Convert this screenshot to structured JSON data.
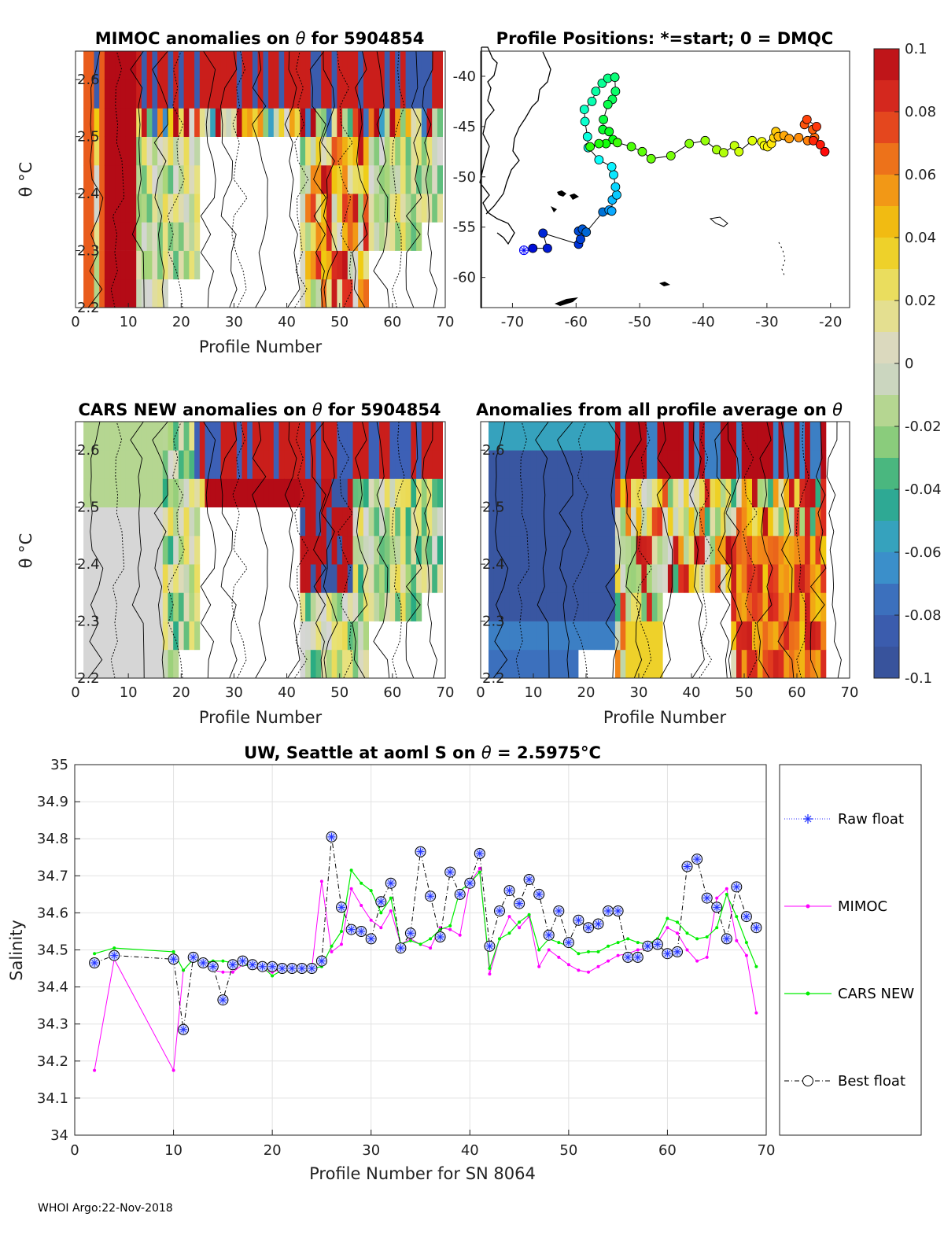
{
  "footer": "WHOI Argo:22-Nov-2018",
  "colorbar": {
    "ticks": [
      "0.1",
      "0.08",
      "0.06",
      "0.04",
      "0.02",
      "0",
      "-0.02",
      "-0.04",
      "-0.06",
      "-0.08",
      "-0.1"
    ],
    "range": [
      -0.1,
      0.1
    ]
  },
  "chart_data": [
    {
      "id": "mimoc",
      "type": "heatmap",
      "title_prefix": "MIMOC anomalies on ",
      "title_symbol": "θ",
      "title_suffix": "  for 5904854",
      "xlabel": "Profile Number",
      "ylabel": "θ °C",
      "xlim": [
        0,
        70
      ],
      "ylim": [
        2.2,
        2.65
      ],
      "xticks": [
        "0",
        "10",
        "20",
        "30",
        "40",
        "50",
        "60",
        "70"
      ],
      "yticks": [
        "2.6",
        "2.5",
        "2.4",
        "2.3",
        "2.2"
      ]
    },
    {
      "id": "map",
      "type": "scatter",
      "title": "Profile Positions: *=start; 0 = DMQC",
      "xlim": [
        -75,
        -17
      ],
      "ylim": [
        -63,
        -37.5
      ],
      "xticks": [
        "-70",
        "-60",
        "-50",
        "-40",
        "-30",
        "-20"
      ],
      "yticks": [
        "-40",
        "-45",
        "-50",
        "-55",
        "-60"
      ],
      "track": [
        [
          -68.2,
          -57.3
        ],
        [
          -66.8,
          -57.1
        ],
        [
          -64.5,
          -57.1
        ],
        [
          -65.2,
          -55.6
        ],
        [
          -59.6,
          -56.7
        ],
        [
          -59.3,
          -56.2
        ],
        [
          -59.6,
          -55.4
        ],
        [
          -59.0,
          -55.2
        ],
        [
          -58.4,
          -55.5
        ],
        [
          -55.8,
          -53.5
        ],
        [
          -54.8,
          -53.3
        ],
        [
          -54.4,
          -53.4
        ],
        [
          -54.3,
          -52.3
        ],
        [
          -53.6,
          -51.8
        ],
        [
          -53.8,
          -51.0
        ],
        [
          -54.1,
          -49.8
        ],
        [
          -54.4,
          -49.0
        ],
        [
          -56.4,
          -48.3
        ],
        [
          -58.1,
          -47.1
        ],
        [
          -58.2,
          -46.0
        ],
        [
          -58.6,
          -44.5
        ],
        [
          -58.7,
          -43.3
        ],
        [
          -57.5,
          -42.5
        ],
        [
          -56.9,
          -41.5
        ],
        [
          -55.9,
          -40.7
        ],
        [
          -55.0,
          -40.2
        ],
        [
          -53.9,
          -40.1
        ],
        [
          -53.8,
          -41.5
        ],
        [
          -54.3,
          -42.3
        ],
        [
          -55.0,
          -42.8
        ],
        [
          -55.7,
          -44.3
        ],
        [
          -55.8,
          -45.3
        ],
        [
          -54.8,
          -45.5
        ],
        [
          -54.2,
          -46.3
        ],
        [
          -55.3,
          -46.7
        ],
        [
          -56.4,
          -46.7
        ],
        [
          -57.8,
          -47.0
        ],
        [
          -53.5,
          -46.6
        ],
        [
          -51.3,
          -47.0
        ],
        [
          -49.6,
          -47.5
        ],
        [
          -48.2,
          -48.2
        ],
        [
          -45.1,
          -47.9
        ],
        [
          -42.2,
          -46.7
        ],
        [
          -39.7,
          -46.4
        ],
        [
          -37.9,
          -47.3
        ],
        [
          -36.8,
          -47.6
        ],
        [
          -35.1,
          -46.9
        ],
        [
          -34.4,
          -47.5
        ],
        [
          -32.3,
          -46.4
        ],
        [
          -30.8,
          -46.5
        ],
        [
          -30.4,
          -46.9
        ],
        [
          -29.9,
          -47.0
        ],
        [
          -29.3,
          -46.7
        ],
        [
          -28.9,
          -46.1
        ],
        [
          -28.6,
          -45.5
        ],
        [
          -28.2,
          -46.0
        ],
        [
          -27.3,
          -45.9
        ],
        [
          -26.5,
          -46.2
        ],
        [
          -25.0,
          -46.1
        ],
        [
          -23.6,
          -46.4
        ],
        [
          -22.5,
          -46.1
        ],
        [
          -22.8,
          -45.3
        ],
        [
          -24.1,
          -44.8
        ],
        [
          -23.7,
          -44.3
        ],
        [
          -22.2,
          -45.0
        ],
        [
          -22.7,
          -46.4
        ],
        [
          -21.6,
          -46.8
        ],
        [
          -20.9,
          -47.5
        ]
      ]
    },
    {
      "id": "cars",
      "type": "heatmap",
      "title_prefix": "CARS NEW anomalies on ",
      "title_symbol": "θ",
      "title_suffix": " for 5904854",
      "xlabel": "Profile Number",
      "ylabel": "θ °C",
      "xlim": [
        0,
        70
      ],
      "ylim": [
        2.2,
        2.65
      ],
      "xticks": [
        "0",
        "10",
        "20",
        "30",
        "40",
        "50",
        "60",
        "70"
      ],
      "yticks": [
        "2.6",
        "2.5",
        "2.4",
        "2.3",
        "2.2"
      ]
    },
    {
      "id": "avg",
      "type": "heatmap",
      "title_prefix": "Anomalies from all profile average on ",
      "title_symbol": "θ",
      "title_suffix": "",
      "xlabel": "Profile Number",
      "ylabel": "",
      "xlim": [
        0,
        70
      ],
      "ylim": [
        2.2,
        2.65
      ],
      "xticks": [
        "0",
        "10",
        "20",
        "30",
        "40",
        "50",
        "60",
        "70"
      ],
      "yticks": [
        "2.6",
        "2.5",
        "2.4",
        "2.3",
        "2.2"
      ]
    },
    {
      "id": "salinity",
      "type": "line",
      "title_prefix": "UW, Seattle at aoml S on ",
      "title_symbol": "θ",
      "title_suffix": " = 2.5975°C",
      "xlabel": "Profile Number for SN 8064",
      "ylabel": "Salinity",
      "xlim": [
        0,
        70
      ],
      "ylim": [
        34,
        35
      ],
      "xticks": [
        "0",
        "10",
        "20",
        "30",
        "40",
        "50",
        "60",
        "70"
      ],
      "yticks": [
        "35",
        "34.9",
        "34.8",
        "34.7",
        "34.6",
        "34.5",
        "34.4",
        "34.3",
        "34.2",
        "34.1",
        "34"
      ],
      "x": [
        2,
        4,
        10,
        11,
        12,
        13,
        14,
        15,
        16,
        17,
        18,
        19,
        20,
        21,
        22,
        23,
        24,
        25,
        26,
        27,
        28,
        29,
        30,
        31,
        32,
        33,
        34,
        35,
        36,
        37,
        38,
        39,
        40,
        41,
        42,
        43,
        44,
        45,
        46,
        47,
        48,
        49,
        50,
        51,
        52,
        53,
        54,
        55,
        56,
        57,
        58,
        59,
        60,
        61,
        62,
        63,
        64,
        65,
        66,
        67,
        68,
        69
      ],
      "series": [
        {
          "name": "Raw float",
          "values": [
            34.465,
            34.485,
            34.475,
            34.285,
            34.48,
            34.465,
            34.455,
            34.365,
            34.46,
            34.47,
            34.46,
            34.455,
            34.455,
            34.45,
            34.45,
            34.45,
            34.45,
            34.47,
            34.805,
            34.615,
            34.555,
            34.55,
            34.53,
            34.63,
            34.68,
            34.505,
            34.545,
            34.765,
            34.645,
            34.535,
            34.71,
            34.65,
            34.68,
            34.76,
            34.51,
            34.605,
            34.66,
            34.625,
            34.69,
            34.65,
            34.54,
            34.605,
            34.52,
            34.58,
            34.56,
            34.57,
            34.605,
            34.605,
            34.48,
            34.48,
            34.51,
            34.515,
            34.49,
            34.495,
            34.725,
            34.745,
            34.64,
            34.615,
            34.53,
            34.67,
            34.59,
            34.56
          ]
        },
        {
          "name": "MIMOC",
          "values": [
            34.175,
            34.475,
            34.175,
            34.445,
            34.475,
            34.465,
            34.445,
            34.44,
            34.44,
            34.46,
            34.455,
            34.445,
            34.44,
            34.45,
            34.445,
            34.45,
            34.45,
            34.685,
            34.495,
            34.515,
            34.665,
            34.62,
            34.58,
            34.56,
            34.605,
            34.515,
            34.53,
            34.515,
            34.505,
            34.56,
            34.555,
            34.54,
            34.68,
            34.72,
            34.435,
            34.53,
            34.59,
            34.56,
            34.59,
            34.455,
            34.5,
            34.48,
            34.46,
            34.445,
            34.44,
            34.455,
            34.47,
            34.485,
            34.49,
            34.5,
            34.505,
            34.52,
            34.56,
            34.545,
            34.5,
            34.47,
            34.48,
            34.64,
            34.665,
            34.525,
            34.485,
            34.33
          ]
        },
        {
          "name": "CARS NEW",
          "values": [
            34.49,
            34.505,
            34.495,
            34.445,
            34.475,
            34.465,
            34.47,
            34.47,
            34.465,
            34.46,
            34.455,
            34.455,
            34.43,
            34.445,
            34.445,
            34.45,
            34.45,
            34.455,
            34.51,
            34.55,
            34.715,
            34.68,
            34.66,
            34.6,
            34.64,
            34.515,
            34.525,
            34.515,
            34.53,
            34.555,
            34.565,
            34.66,
            34.68,
            34.71,
            34.45,
            34.53,
            34.545,
            34.575,
            34.595,
            34.5,
            34.53,
            34.52,
            34.51,
            34.49,
            34.495,
            34.495,
            34.51,
            34.52,
            34.53,
            34.52,
            34.515,
            34.53,
            34.585,
            34.575,
            34.545,
            34.53,
            34.535,
            34.56,
            34.65,
            34.59,
            34.52,
            34.455
          ]
        },
        {
          "name": "Best float",
          "values": [
            34.465,
            34.485,
            34.475,
            34.285,
            34.48,
            34.465,
            34.455,
            34.365,
            34.46,
            34.47,
            34.46,
            34.455,
            34.455,
            34.45,
            34.45,
            34.45,
            34.45,
            34.47,
            34.805,
            34.615,
            34.555,
            34.55,
            34.53,
            34.63,
            34.68,
            34.505,
            34.545,
            34.765,
            34.645,
            34.535,
            34.71,
            34.65,
            34.68,
            34.76,
            34.51,
            34.605,
            34.66,
            34.625,
            34.69,
            34.65,
            34.54,
            34.605,
            34.52,
            34.58,
            34.56,
            34.57,
            34.605,
            34.605,
            34.48,
            34.48,
            34.51,
            34.515,
            34.49,
            34.495,
            34.725,
            34.745,
            34.64,
            34.615,
            34.53,
            34.67,
            34.59,
            34.56
          ]
        }
      ]
    }
  ]
}
